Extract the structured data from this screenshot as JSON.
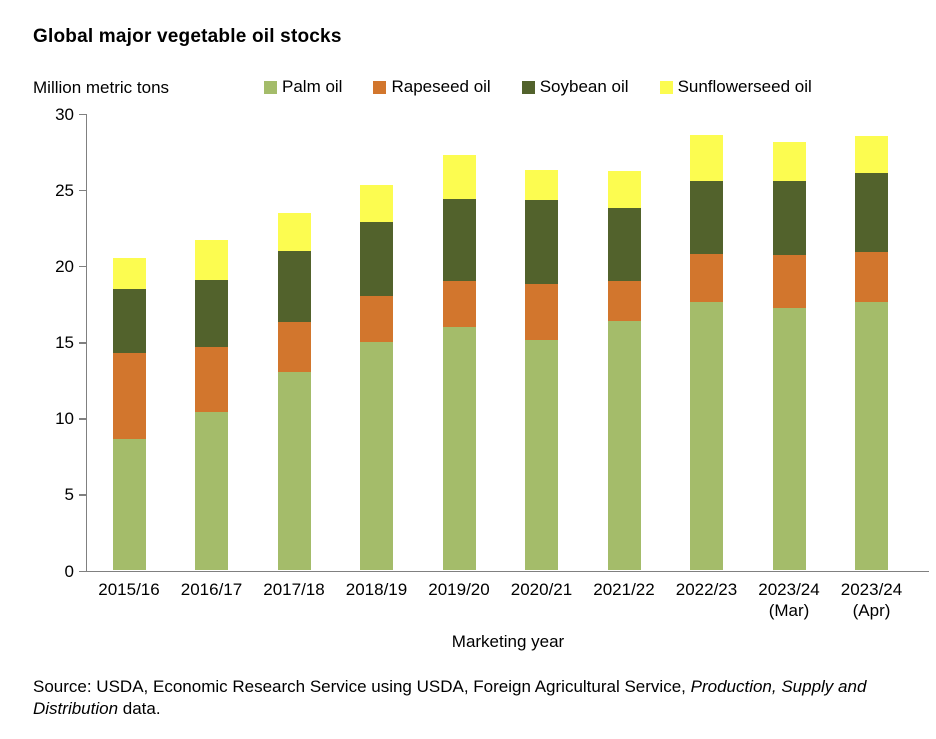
{
  "title": "Global major vegetable oil stocks",
  "units_label": "Million metric tons",
  "chart_data": {
    "type": "bar",
    "stacked": true,
    "title": "Global major vegetable oil stocks",
    "xlabel": "Marketing year",
    "ylabel": "Million metric tons",
    "ylim": [
      0,
      30
    ],
    "yticks": [
      0,
      5,
      10,
      15,
      20,
      25,
      30
    ],
    "grid": false,
    "legend_position": "top",
    "categories": [
      "2015/16",
      "2016/17",
      "2017/18",
      "2018/19",
      "2019/20",
      "2020/21",
      "2021/22",
      "2022/23",
      "2023/24",
      "2023/24"
    ],
    "category_sublabels": [
      "",
      "",
      "",
      "",
      "",
      "",
      "",
      "",
      "(Mar)",
      "(Apr)"
    ],
    "series": [
      {
        "name": "Palm oil",
        "color": "#a4bc6a",
        "values": [
          8.6,
          10.4,
          13.0,
          15.0,
          16.0,
          15.1,
          16.4,
          17.6,
          17.2,
          17.6
        ]
      },
      {
        "name": "Rapeseed oil",
        "color": "#d2762d",
        "values": [
          5.7,
          4.3,
          3.3,
          3.0,
          3.0,
          3.7,
          2.6,
          3.2,
          3.5,
          3.3
        ]
      },
      {
        "name": "Soybean oil",
        "color": "#52622c",
        "values": [
          4.2,
          4.4,
          4.7,
          4.9,
          5.4,
          5.5,
          4.8,
          4.8,
          4.9,
          5.2
        ]
      },
      {
        "name": "Sunflowerseed oil",
        "color": "#fcfc50",
        "values": [
          2.0,
          2.6,
          2.5,
          2.4,
          2.9,
          2.0,
          2.4,
          3.0,
          2.5,
          2.4
        ]
      }
    ],
    "totals": [
      20.5,
      21.7,
      23.5,
      25.3,
      27.3,
      26.3,
      26.2,
      28.6,
      28.1,
      28.5
    ]
  },
  "source": {
    "prefix": "Source: USDA, Economic Research Service using USDA, Foreign Agricultural Service, ",
    "italic": "Production, Supply and Distribution",
    "suffix": " data."
  },
  "colors": {
    "axis": "#808080",
    "text": "#000000",
    "background": "#ffffff"
  }
}
